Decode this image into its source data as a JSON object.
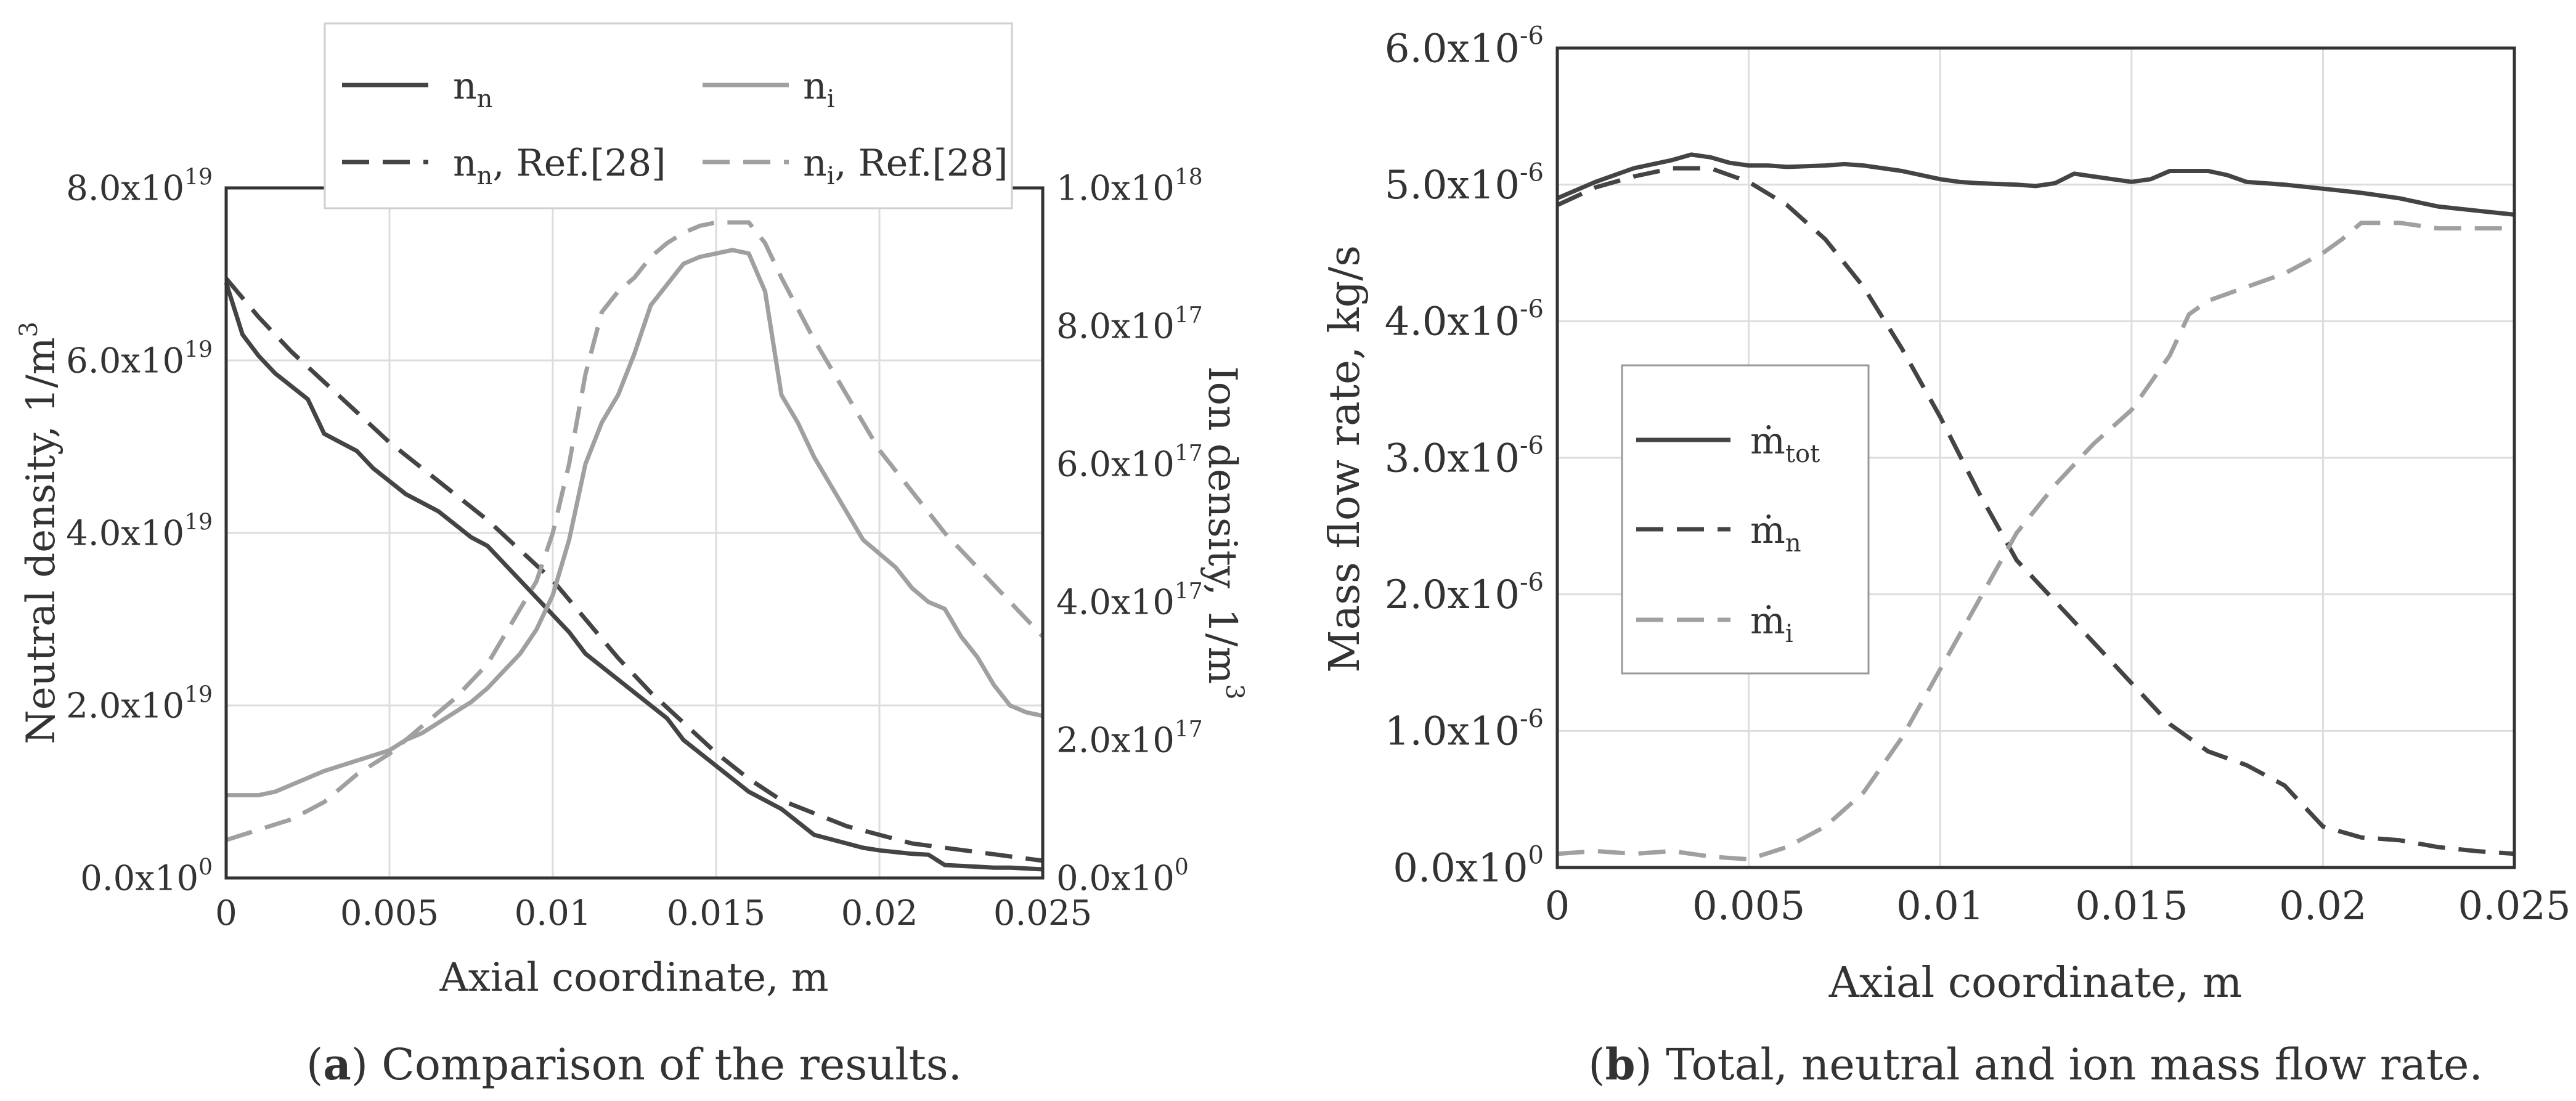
{
  "chart_data": [
    {
      "id": "a",
      "type": "line",
      "caption_letter": "a",
      "caption_text": "Comparison of the results.",
      "xlabel": "Axial coordinate, m",
      "ylabel_left": "Neutral density, 1/m",
      "ylabel_left_sup": "3",
      "ylabel_right": "Ion density, 1/m",
      "ylabel_right_sup": "3",
      "xlim": [
        0,
        0.025
      ],
      "ylim_left": [
        0,
        8e+19
      ],
      "ylim_right": [
        0,
        1e+18
      ],
      "grid": true,
      "legend_position": "top-center",
      "x_ticks": [
        {
          "value": 0,
          "label": "0"
        },
        {
          "value": 0.005,
          "label": "0.005"
        },
        {
          "value": 0.01,
          "label": "0.01"
        },
        {
          "value": 0.015,
          "label": "0.015"
        },
        {
          "value": 0.02,
          "label": "0.02"
        },
        {
          "value": 0.025,
          "label": "0.025"
        }
      ],
      "y_ticks_left": [
        {
          "value": 0,
          "mant": "0.0x10",
          "exp": "0"
        },
        {
          "value": 2e+19,
          "mant": "2.0x10",
          "exp": "19"
        },
        {
          "value": 4e+19,
          "mant": "4.0x10",
          "exp": "19"
        },
        {
          "value": 6e+19,
          "mant": "6.0x10",
          "exp": "19"
        },
        {
          "value": 8e+19,
          "mant": "8.0x10",
          "exp": "19"
        }
      ],
      "y_ticks_right": [
        {
          "value": 0,
          "mant": "0.0x10",
          "exp": "0"
        },
        {
          "value": 2e+17,
          "mant": "2.0x10",
          "exp": "17"
        },
        {
          "value": 4e+17,
          "mant": "4.0x10",
          "exp": "17"
        },
        {
          "value": 6e+17,
          "mant": "6.0x10",
          "exp": "17"
        },
        {
          "value": 8e+17,
          "mant": "8.0x10",
          "exp": "17"
        },
        {
          "value": 1e+18,
          "mant": "1.0x10",
          "exp": "18"
        }
      ],
      "series": [
        {
          "name": "n_n",
          "legend_main": "n",
          "legend_sub": "n",
          "legend_suffix": "",
          "axis": "left",
          "style": "solid",
          "color": "#444444",
          "x": [
            0,
            0.0005,
            0.001,
            0.0015,
            0.002,
            0.0025,
            0.003,
            0.0035,
            0.004,
            0.0045,
            0.005,
            0.0055,
            0.006,
            0.0065,
            0.007,
            0.0075,
            0.008,
            0.0085,
            0.009,
            0.0095,
            0.01,
            0.0105,
            0.011,
            0.0115,
            0.012,
            0.0125,
            0.013,
            0.0135,
            0.014,
            0.0145,
            0.015,
            0.0155,
            0.016,
            0.0165,
            0.017,
            0.0175,
            0.018,
            0.0185,
            0.019,
            0.0195,
            0.02,
            0.0205,
            0.021,
            0.0215,
            0.022,
            0.0225,
            0.023,
            0.0235,
            0.024,
            0.0245,
            0.025
          ],
          "y": [
            6.9e+19,
            6.3e+19,
            6.05e+19,
            5.85e+19,
            5.7e+19,
            5.55e+19,
            5.15e+19,
            5.05e+19,
            4.95e+19,
            4.75e+19,
            4.6e+19,
            4.45e+19,
            4.35e+19,
            4.25e+19,
            4.1e+19,
            3.95e+19,
            3.85e+19,
            3.65e+19,
            3.45e+19,
            3.25e+19,
            3.05e+19,
            2.85e+19,
            2.6e+19,
            2.45e+19,
            2.3e+19,
            2.15e+19,
            2e+19,
            1.85e+19,
            1.6e+19,
            1.45e+19,
            1.3e+19,
            1.15e+19,
            1e+19,
            9e+18,
            8e+18,
            6.5e+18,
            5e+18,
            4.5e+18,
            4e+18,
            3.5e+18,
            3.2e+18,
            3e+18,
            2.8e+18,
            2.7e+18,
            1.5e+18,
            1.4e+18,
            1.3e+18,
            1.2e+18,
            1.2e+18,
            1.1e+18,
            1e+18
          ]
        },
        {
          "name": "n_n, Ref.[28]",
          "legend_main": "n",
          "legend_sub": "n",
          "legend_suffix": ", Ref.[28]",
          "axis": "left",
          "style": "dashed",
          "color": "#444444",
          "x": [
            0,
            0.001,
            0.002,
            0.003,
            0.004,
            0.005,
            0.006,
            0.007,
            0.008,
            0.009,
            0.01,
            0.011,
            0.012,
            0.013,
            0.014,
            0.015,
            0.016,
            0.017,
            0.018,
            0.019,
            0.02,
            0.021,
            0.022,
            0.023,
            0.024,
            0.025
          ],
          "y": [
            6.95e+19,
            6.5e+19,
            6.1e+19,
            5.75e+19,
            5.4e+19,
            5.05e+19,
            4.75e+19,
            4.45e+19,
            4.15e+19,
            3.8e+19,
            3.45e+19,
            3e+19,
            2.55e+19,
            2.15e+19,
            1.8e+19,
            1.45e+19,
            1.15e+19,
            9e+18,
            7.5e+18,
            6e+18,
            5e+18,
            4e+18,
            3.5e+18,
            3e+18,
            2.5e+18,
            2e+18
          ]
        },
        {
          "name": "n_i",
          "legend_main": "n",
          "legend_sub": "i",
          "legend_suffix": "",
          "axis": "right",
          "style": "solid",
          "color": "#a0a0a0",
          "x": [
            0,
            0.001,
            0.0015,
            0.002,
            0.0025,
            0.003,
            0.004,
            0.005,
            0.0055,
            0.006,
            0.0065,
            0.007,
            0.0075,
            0.008,
            0.0085,
            0.009,
            0.0095,
            0.01,
            0.0105,
            0.011,
            0.0115,
            0.012,
            0.0125,
            0.013,
            0.0135,
            0.014,
            0.0145,
            0.015,
            0.0155,
            0.016,
            0.0165,
            0.017,
            0.0175,
            0.018,
            0.0185,
            0.019,
            0.0195,
            0.02,
            0.0205,
            0.021,
            0.0215,
            0.022,
            0.0225,
            0.023,
            0.0235,
            0.024,
            0.0245,
            0.025
          ],
          "y": [
            1.2e+17,
            1.2e+17,
            1.25e+17,
            1.35e+17,
            1.45e+17,
            1.55e+17,
            1.7e+17,
            1.85e+17,
            2e+17,
            2.1e+17,
            2.25e+17,
            2.4e+17,
            2.55e+17,
            2.75e+17,
            3e+17,
            3.25e+17,
            3.6e+17,
            4.1e+17,
            4.9e+17,
            6e+17,
            6.6e+17,
            7e+17,
            7.6e+17,
            8.3e+17,
            8.6e+17,
            8.9e+17,
            9e+17,
            9.05e+17,
            9.1e+17,
            9.05e+17,
            8.5e+17,
            7e+17,
            6.6e+17,
            6.1e+17,
            5.7e+17,
            5.3e+17,
            4.9e+17,
            4.7e+17,
            4.5e+17,
            4.2e+17,
            4e+17,
            3.9e+17,
            3.5e+17,
            3.2e+17,
            2.8e+17,
            2.5e+17,
            2.4e+17,
            2.35e+17
          ]
        },
        {
          "name": "n_i, Ref.[28]",
          "legend_main": "n",
          "legend_sub": "i",
          "legend_suffix": ", Ref.[28]",
          "axis": "right",
          "style": "dashed",
          "color": "#a0a0a0",
          "x": [
            0,
            0.001,
            0.002,
            0.003,
            0.004,
            0.005,
            0.006,
            0.007,
            0.008,
            0.009,
            0.0095,
            0.01,
            0.0105,
            0.011,
            0.0115,
            0.012,
            0.0125,
            0.013,
            0.0135,
            0.014,
            0.0145,
            0.015,
            0.0155,
            0.016,
            0.0165,
            0.017,
            0.018,
            0.019,
            0.02,
            0.021,
            0.022,
            0.023,
            0.024,
            0.025
          ],
          "y": [
            5.5e+16,
            7e+16,
            8.5e+16,
            1.1e+17,
            1.5e+17,
            1.8e+17,
            2.2e+17,
            2.6e+17,
            3.1e+17,
            3.9e+17,
            4.3e+17,
            5e+17,
            6e+17,
            7.3e+17,
            8.2e+17,
            8.5e+17,
            8.7e+17,
            9e+17,
            9.2e+17,
            9.35e+17,
            9.45e+17,
            9.5e+17,
            9.5e+17,
            9.5e+17,
            9.2e+17,
            8.7e+17,
            7.8e+17,
            7e+17,
            6.2e+17,
            5.6e+17,
            5e+17,
            4.5e+17,
            4e+17,
            3.5e+17
          ]
        }
      ]
    },
    {
      "id": "b",
      "type": "line",
      "caption_letter": "b",
      "caption_text": "Total, neutral and ion mass flow rate.",
      "xlabel": "Axial coordinate, m",
      "ylabel_left": "Mass flow rate, kg/s",
      "xlim": [
        0,
        0.025
      ],
      "ylim_left": [
        0,
        6e-06
      ],
      "grid": true,
      "legend_position": "center-left",
      "x_ticks": [
        {
          "value": 0,
          "label": "0"
        },
        {
          "value": 0.005,
          "label": "0.005"
        },
        {
          "value": 0.01,
          "label": "0.01"
        },
        {
          "value": 0.015,
          "label": "0.015"
        },
        {
          "value": 0.02,
          "label": "0.02"
        },
        {
          "value": 0.025,
          "label": "0.025"
        }
      ],
      "y_ticks_left": [
        {
          "value": 0,
          "mant": "0.0x10",
          "exp": "0"
        },
        {
          "value": 1e-06,
          "mant": "1.0x10",
          "exp": "-6"
        },
        {
          "value": 2e-06,
          "mant": "2.0x10",
          "exp": "-6"
        },
        {
          "value": 3e-06,
          "mant": "3.0x10",
          "exp": "-6"
        },
        {
          "value": 4e-06,
          "mant": "4.0x10",
          "exp": "-6"
        },
        {
          "value": 5e-06,
          "mant": "5.0x10",
          "exp": "-6"
        },
        {
          "value": 6e-06,
          "mant": "6.0x10",
          "exp": "-6"
        }
      ],
      "series": [
        {
          "name": "m_tot",
          "legend_main": "ṁ",
          "legend_sub": "tot",
          "axis": "left",
          "style": "solid",
          "color": "#444444",
          "x": [
            0,
            0.001,
            0.002,
            0.003,
            0.0035,
            0.004,
            0.0045,
            0.005,
            0.0055,
            0.006,
            0.007,
            0.0075,
            0.008,
            0.009,
            0.01,
            0.0105,
            0.011,
            0.012,
            0.0125,
            0.013,
            0.0135,
            0.014,
            0.015,
            0.0155,
            0.016,
            0.0165,
            0.017,
            0.0175,
            0.018,
            0.019,
            0.02,
            0.021,
            0.022,
            0.023,
            0.024,
            0.025
          ],
          "y": [
            4.9e-06,
            5.02e-06,
            5.12e-06,
            5.18e-06,
            5.22e-06,
            5.2e-06,
            5.16e-06,
            5.14e-06,
            5.14e-06,
            5.13e-06,
            5.14e-06,
            5.15e-06,
            5.14e-06,
            5.1e-06,
            5.04e-06,
            5.02e-06,
            5.01e-06,
            5e-06,
            4.99e-06,
            5.01e-06,
            5.08e-06,
            5.06e-06,
            5.02e-06,
            5.04e-06,
            5.1e-06,
            5.1e-06,
            5.1e-06,
            5.07e-06,
            5.02e-06,
            5e-06,
            4.97e-06,
            4.94e-06,
            4.9e-06,
            4.84e-06,
            4.81e-06,
            4.78e-06
          ]
        },
        {
          "name": "m_n",
          "legend_main": "ṁ",
          "legend_sub": "n",
          "axis": "left",
          "style": "dashed",
          "color": "#444444",
          "x": [
            0,
            0.001,
            0.002,
            0.003,
            0.004,
            0.005,
            0.006,
            0.007,
            0.008,
            0.009,
            0.01,
            0.011,
            0.012,
            0.013,
            0.014,
            0.015,
            0.016,
            0.017,
            0.018,
            0.019,
            0.0195,
            0.02,
            0.021,
            0.022,
            0.023,
            0.024,
            0.025
          ],
          "y": [
            4.85e-06,
            4.98e-06,
            5.06e-06,
            5.12e-06,
            5.12e-06,
            5.02e-06,
            4.85e-06,
            4.6e-06,
            4.25e-06,
            3.8e-06,
            3.3e-06,
            2.75e-06,
            2.25e-06,
            1.95e-06,
            1.65e-06,
            1.35e-06,
            1.05e-06,
            8.5e-07,
            7.5e-07,
            6e-07,
            4.5e-07,
            3e-07,
            2.2e-07,
            2e-07,
            1.5e-07,
            1.2e-07,
            1e-07
          ]
        },
        {
          "name": "m_i",
          "legend_main": "ṁ",
          "legend_sub": "i",
          "axis": "left",
          "style": "dashed",
          "color": "#a0a0a0",
          "x": [
            0,
            0.001,
            0.002,
            0.003,
            0.004,
            0.005,
            0.006,
            0.007,
            0.008,
            0.009,
            0.01,
            0.011,
            0.012,
            0.013,
            0.014,
            0.015,
            0.016,
            0.0165,
            0.017,
            0.018,
            0.019,
            0.02,
            0.0205,
            0.021,
            0.022,
            0.023,
            0.024,
            0.025
          ],
          "y": [
            1e-07,
            1.2e-07,
            1e-07,
            1.2e-07,
            8e-08,
            6e-08,
            1.5e-07,
            3e-07,
            5.5e-07,
            9.5e-07,
            1.45e-06,
            1.95e-06,
            2.45e-06,
            2.8e-06,
            3.1e-06,
            3.35e-06,
            3.75e-06,
            4.05e-06,
            4.15e-06,
            4.25e-06,
            4.35e-06,
            4.5e-06,
            4.6e-06,
            4.72e-06,
            4.72e-06,
            4.68e-06,
            4.68e-06,
            4.68e-06
          ]
        }
      ]
    }
  ]
}
